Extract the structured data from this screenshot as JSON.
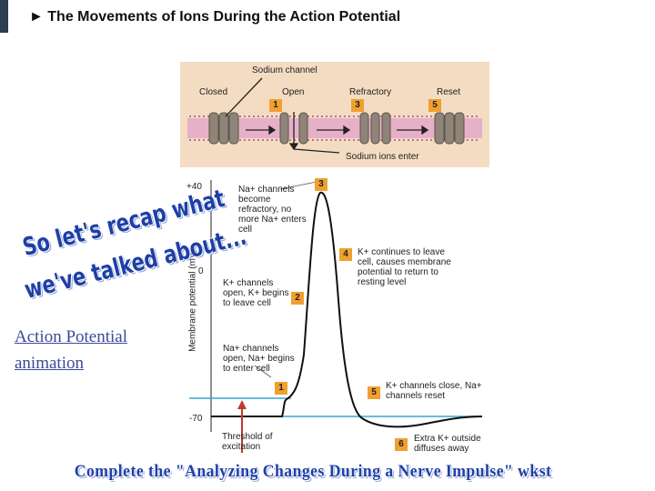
{
  "title": "The Movements of Ions During the Action Potential",
  "channel_diagram": {
    "label": "Sodium channel",
    "states": [
      "Closed",
      "Open",
      "Refractory",
      "Reset"
    ],
    "steps": [
      "1",
      "3",
      "5"
    ],
    "caption": "Sodium ions enter"
  },
  "graph": {
    "y_axis_label": "Membrane potential (mV)",
    "ticks": [
      "+40",
      "0",
      "-70"
    ],
    "threshold_label": "Threshold of excitation",
    "annotations": [
      {
        "number": "1",
        "text": "Na+ channels open, Na+ begins to enter cell"
      },
      {
        "number": "2",
        "text": "K+ channels open, K+ begins to leave cell"
      },
      {
        "number": "3",
        "text": "Na+ channels become refractory, no more Na+ enters cell"
      },
      {
        "number": "4",
        "text": "K+ continues to leave cell, causes membrane potential to return to resting level"
      },
      {
        "number": "5",
        "text": "K+ channels close, Na+ channels reset"
      },
      {
        "number": "6",
        "text": "Extra K+ outside diffuses away"
      }
    ]
  },
  "recap": [
    "So let's recap what",
    "we've talked about..."
  ],
  "link": "Action Potential animation",
  "footer": "Complete the \"Analyzing Changes During a Nerve Impulse\" wkst"
}
